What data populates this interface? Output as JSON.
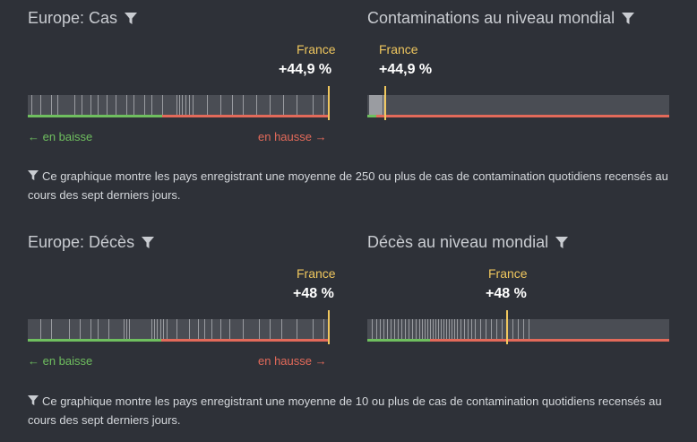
{
  "sections": [
    {
      "left": {
        "title": "Europe: Cas",
        "country": "France",
        "value": "+44,9 %",
        "down_label": "← en baisse",
        "up_label": "en hausse →"
      },
      "right": {
        "title": "Contaminations au niveau mondial",
        "country": "France",
        "value": "+44,9 %"
      },
      "note": "Ce graphique montre les pays enregistrant une moyenne de 250 ou plus de cas de contamination quotidiens recensés au cours des sept derniers jours."
    },
    {
      "left": {
        "title": "Europe: Décès",
        "country": "France",
        "value": "+48 %",
        "down_label": "← en baisse",
        "up_label": "en hausse →"
      },
      "right": {
        "title": "Décès au niveau mondial",
        "country": "France",
        "value": "+48 %"
      },
      "note": "Ce graphique montre les pays enregistrant une moyenne de 10 ou plus de cas de contamination quotidiens recensés au cours des sept derniers jours."
    }
  ],
  "colors": {
    "background": "#2e3138",
    "highlight": "#f0c75e",
    "decrease": "#6fbf5f",
    "increase": "#e36a5a"
  },
  "icons": {
    "filter": "funnel-icon"
  }
}
